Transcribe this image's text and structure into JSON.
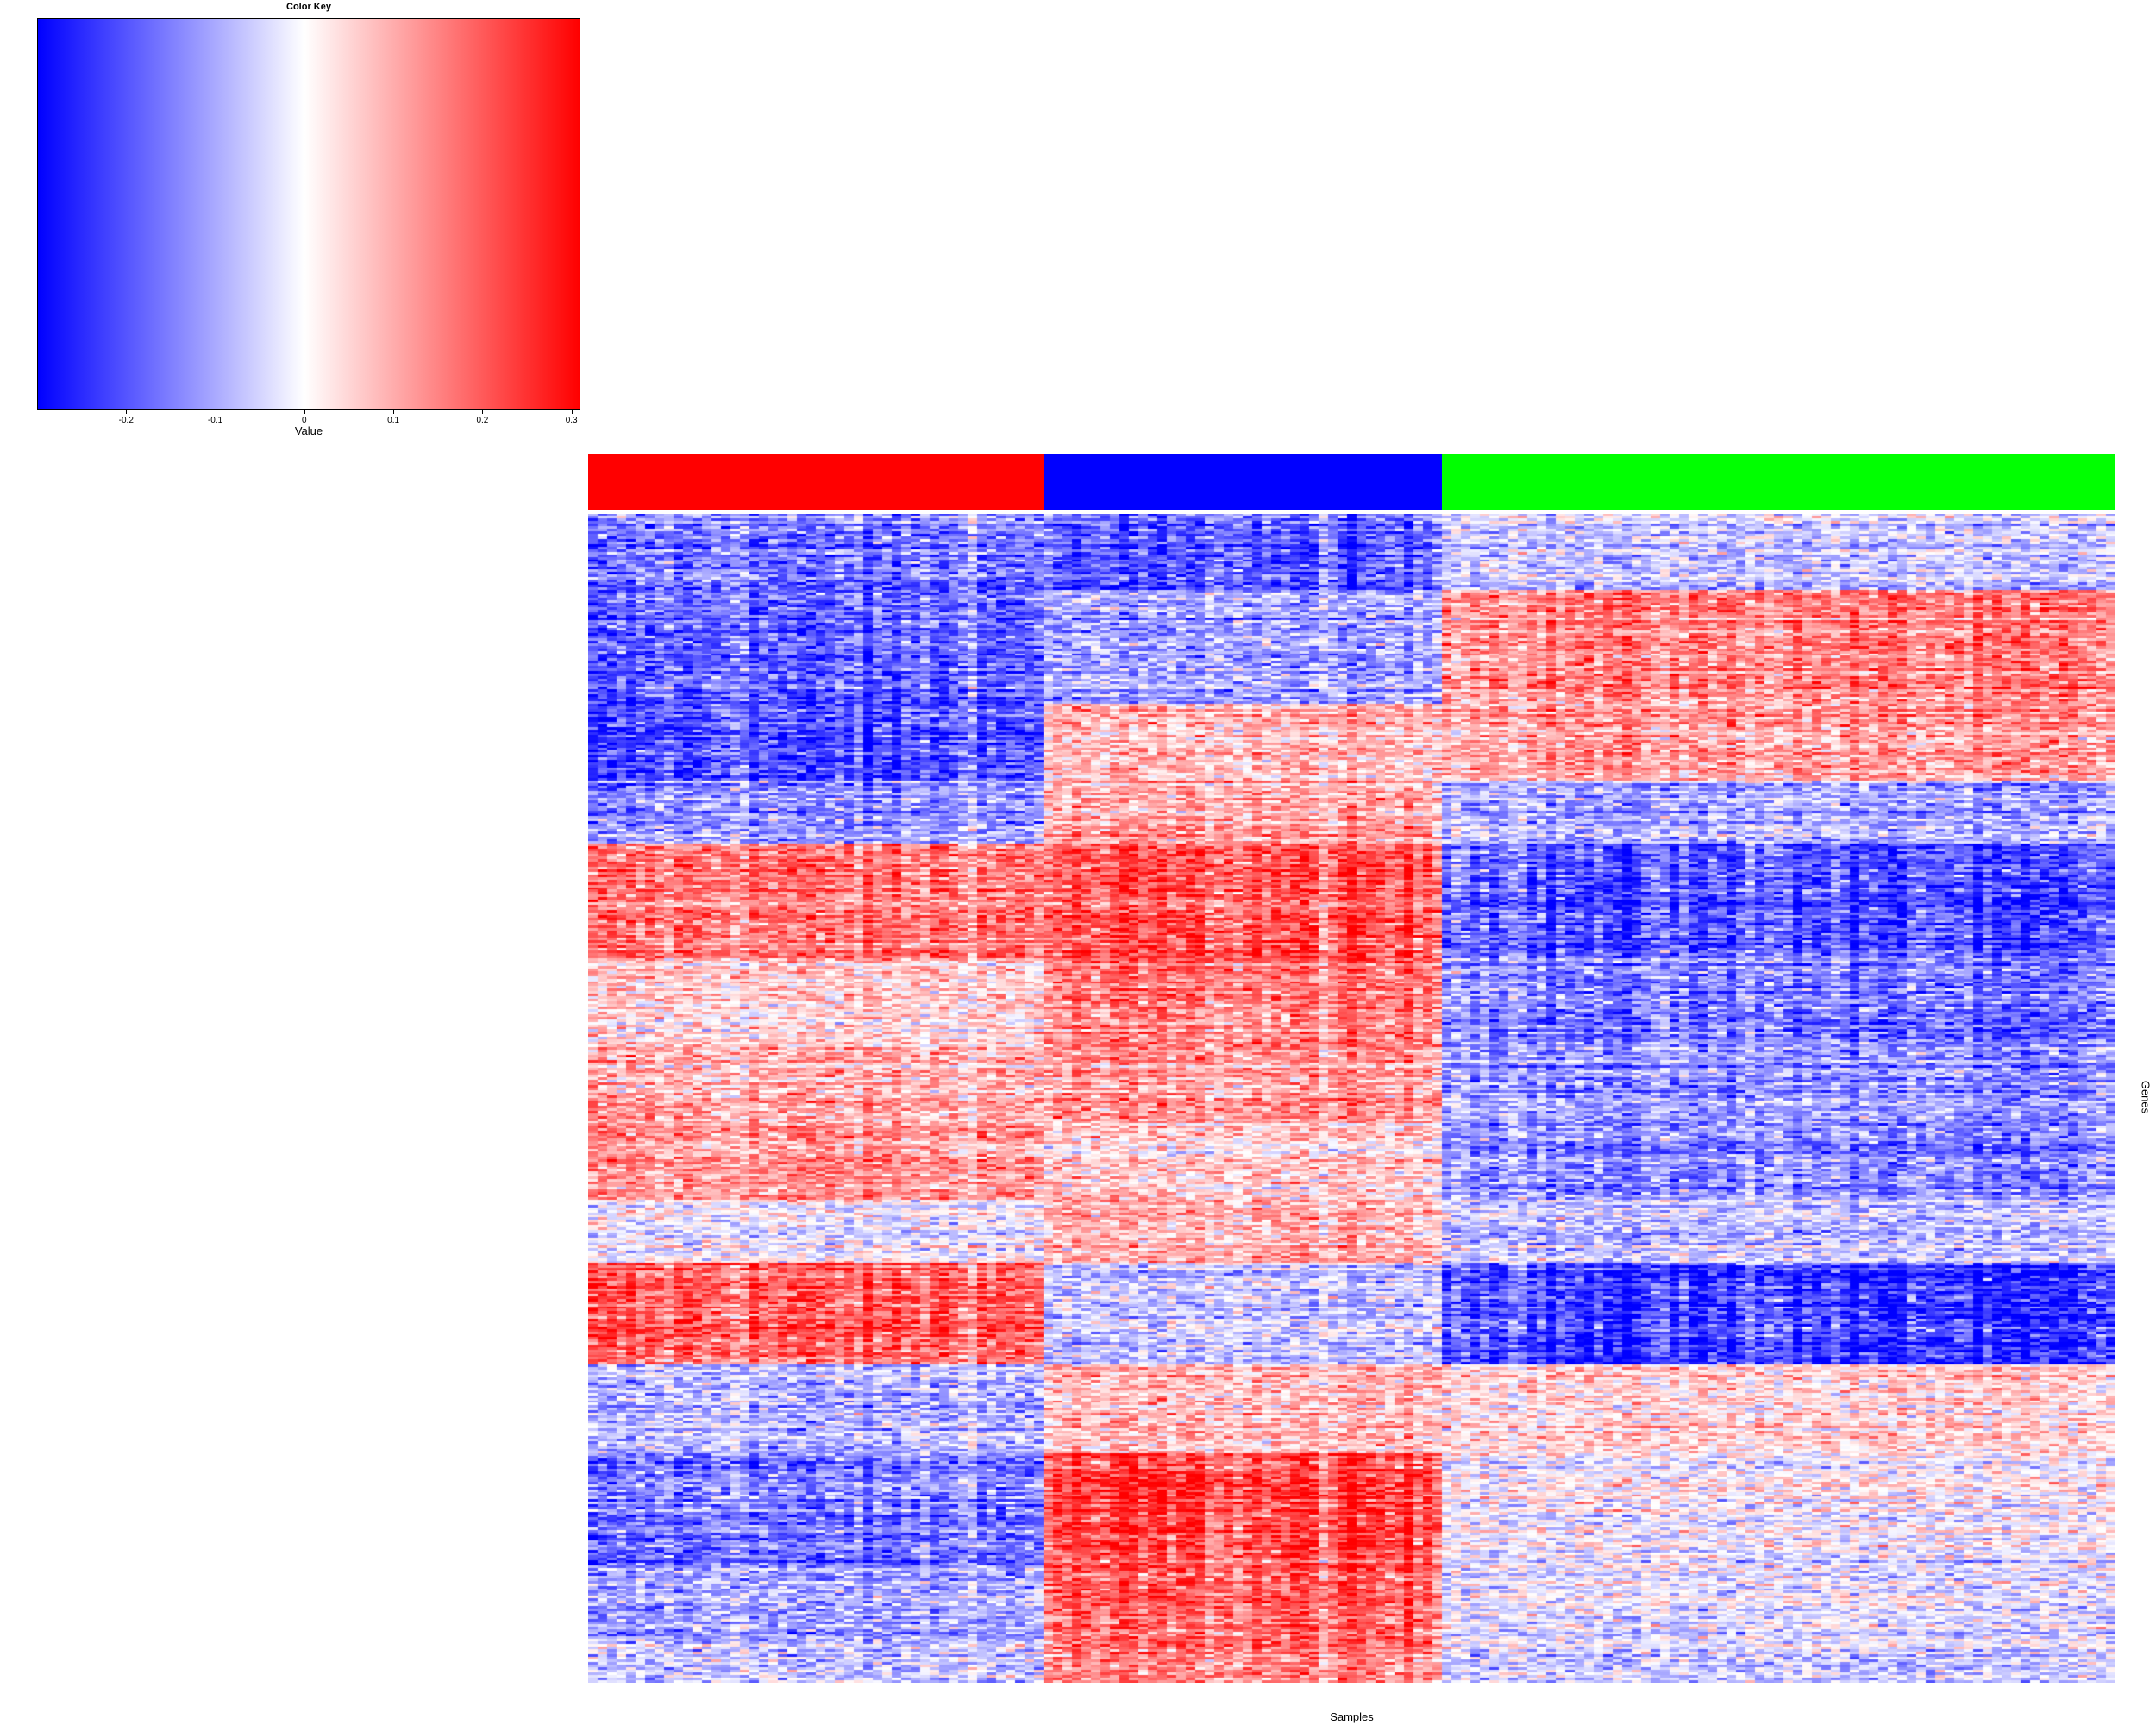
{
  "chart_data": {
    "type": "heatmap",
    "color_key": {
      "title": "Color Key",
      "xlabel": "Value",
      "range": [
        -0.3,
        0.31
      ],
      "ticks": [
        {
          "value": -0.2,
          "label": "-0.2"
        },
        {
          "value": -0.1,
          "label": "-0.1"
        },
        {
          "value": 0,
          "label": "0"
        },
        {
          "value": 0.1,
          "label": "0.1"
        },
        {
          "value": 0.2,
          "label": "0.2"
        },
        {
          "value": 0.3,
          "label": "0.3"
        }
      ],
      "colors": {
        "low": "#0000ff",
        "mid": "#ffffff",
        "high": "#ff0000"
      }
    },
    "xlabel": "Samples",
    "ylabel": "Genes",
    "sample_groups": [
      {
        "color": "#ff0000",
        "count": 48
      },
      {
        "color": "#0000ff",
        "count": 42
      },
      {
        "color": "#00ff00",
        "count": 71
      }
    ],
    "gene_blocks": [
      {
        "rows": 30,
        "means": [
          -0.15,
          -0.18,
          -0.06
        ]
      },
      {
        "rows": 45,
        "means": [
          -0.18,
          -0.1,
          0.15
        ]
      },
      {
        "rows": 30,
        "means": [
          -0.2,
          0.08,
          0.12
        ]
      },
      {
        "rows": 25,
        "means": [
          -0.12,
          0.1,
          -0.1
        ]
      },
      {
        "rows": 45,
        "means": [
          0.16,
          0.2,
          -0.2
        ]
      },
      {
        "rows": 35,
        "means": [
          0.05,
          0.15,
          -0.15
        ]
      },
      {
        "rows": 30,
        "means": [
          0.1,
          0.12,
          -0.12
        ]
      },
      {
        "rows": 30,
        "means": [
          0.12,
          0.05,
          -0.14
        ]
      },
      {
        "rows": 25,
        "means": [
          0.0,
          0.1,
          -0.05
        ]
      },
      {
        "rows": 40,
        "means": [
          0.2,
          -0.05,
          -0.22
        ]
      },
      {
        "rows": 35,
        "means": [
          -0.08,
          0.08,
          0.05
        ]
      },
      {
        "rows": 45,
        "means": [
          -0.15,
          0.22,
          0.0
        ]
      },
      {
        "rows": 30,
        "means": [
          -0.1,
          0.18,
          -0.03
        ]
      },
      {
        "rows": 15,
        "means": [
          -0.05,
          0.15,
          -0.05
        ]
      }
    ]
  }
}
